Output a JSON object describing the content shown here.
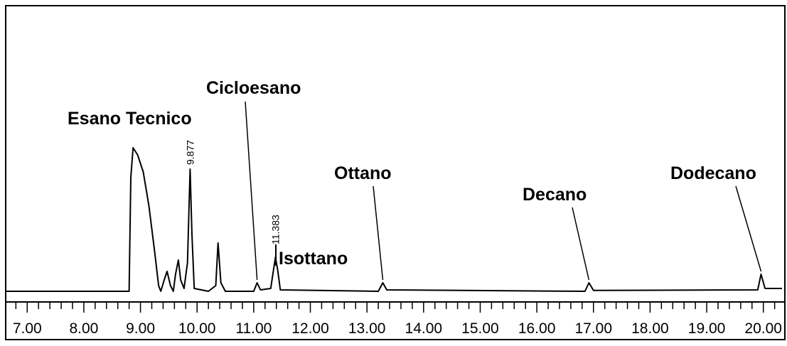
{
  "chart_data": {
    "type": "line",
    "color": "#000000",
    "x": [
      6.62,
      8.8,
      8.83,
      8.87,
      8.95,
      9.05,
      9.15,
      9.25,
      9.32,
      9.36,
      9.42,
      9.47,
      9.53,
      9.58,
      9.62,
      9.67,
      9.71,
      9.77,
      9.83,
      9.877,
      9.91,
      9.95,
      10.2,
      10.33,
      10.37,
      10.42,
      10.5,
      11.0,
      11.06,
      11.12,
      11.3,
      11.383,
      11.42,
      11.47,
      13.2,
      13.28,
      13.35,
      16.85,
      16.92,
      17.0,
      19.9,
      19.96,
      20.03,
      20.33
    ],
    "values": [
      0,
      0,
      40,
      50.5,
      48,
      42,
      30,
      14,
      2,
      0,
      4,
      7,
      2,
      0,
      6,
      11,
      4,
      1,
      10,
      43,
      20,
      1,
      0,
      2,
      17,
      3,
      0,
      0,
      3,
      0.5,
      1,
      12,
      8,
      0.5,
      0,
      3,
      0.5,
      0,
      3,
      0.3,
      0.5,
      6,
      1,
      1
    ],
    "xlim": [
      6.62,
      20.33
    ],
    "ylim": [
      0,
      100
    ],
    "xticks": [
      {
        "value": 7,
        "label": "7.00"
      },
      {
        "value": 8,
        "label": "8.00"
      },
      {
        "value": 9,
        "label": "9.00"
      },
      {
        "value": 10,
        "label": "10.00"
      },
      {
        "value": 11,
        "label": "11.00"
      },
      {
        "value": 12,
        "label": "12.00"
      },
      {
        "value": 13,
        "label": "13.00"
      },
      {
        "value": 14,
        "label": "14.00"
      },
      {
        "value": 15,
        "label": "15.00"
      },
      {
        "value": 16,
        "label": "16.00"
      },
      {
        "value": 17,
        "label": "17.00"
      },
      {
        "value": 18,
        "label": "18.00"
      },
      {
        "value": 19,
        "label": "19.00"
      },
      {
        "value": 20,
        "label": "20.00"
      }
    ],
    "minor_xticks": [
      6.8,
      7.2,
      7.4,
      7.6,
      7.8,
      8.2,
      8.4,
      8.6,
      8.8,
      9.2,
      9.4,
      9.6,
      9.8,
      10.2,
      10.4,
      10.6,
      10.8,
      11.2,
      11.4,
      11.6,
      11.8,
      12.2,
      12.4,
      12.6,
      12.8,
      13.2,
      13.4,
      13.6,
      13.8,
      14.2,
      14.4,
      14.6,
      14.8,
      15.2,
      15.4,
      15.6,
      15.8,
      16.2,
      16.4,
      16.6,
      16.8,
      17.2,
      17.4,
      17.6,
      17.8,
      18.2,
      18.4,
      18.6,
      18.8,
      19.2,
      19.4,
      19.6,
      19.8,
      20.2
    ],
    "retention_times": [
      9.877,
      11.383
    ],
    "annotations": [
      {
        "text": "Esano Tecnico",
        "x": 8.87
      },
      {
        "text": "Cicloesano",
        "x": 11.06
      },
      {
        "text": "Isottano",
        "x": 11.383
      },
      {
        "text": "Ottano",
        "x": 13.28
      },
      {
        "text": "Decano",
        "x": 16.92
      },
      {
        "text": "Dodecano",
        "x": 19.96
      }
    ]
  }
}
